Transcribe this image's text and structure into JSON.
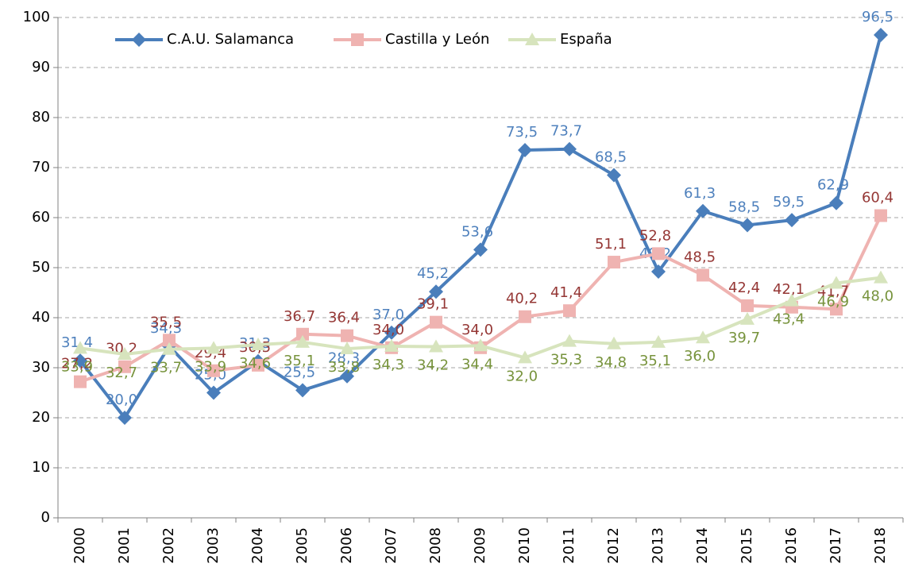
{
  "chart_data": {
    "type": "line",
    "categories": [
      "2000",
      "2001",
      "2002",
      "2003",
      "2004",
      "2005",
      "2006",
      "2007",
      "2008",
      "2009",
      "2010",
      "2011",
      "2012",
      "2013",
      "2014",
      "2015",
      "2016",
      "2017",
      "2018"
    ],
    "series": [
      {
        "name": "C.A.U. Salamanca",
        "color": "#4a7ebb",
        "label_color": "#4f81bd",
        "marker": "diamond",
        "values": [
          31.4,
          20.0,
          34.3,
          25.0,
          31.3,
          25.5,
          28.3,
          37.0,
          45.2,
          53.6,
          73.5,
          73.7,
          68.5,
          49.2,
          61.3,
          58.5,
          59.5,
          62.9,
          96.5
        ],
        "value_labels": [
          "31,4",
          "20,0",
          "34,3",
          "25,0",
          "31,3",
          "25,5",
          "28,3",
          "37,0",
          "45,2",
          "53,6",
          "73,5",
          "73,7",
          "68,5",
          "49,2",
          "61,3",
          "58,5",
          "59,5",
          "62,9",
          "96,5"
        ]
      },
      {
        "name": "Castilla y León",
        "color": "#efb3b1",
        "label_color": "#953735",
        "marker": "square",
        "values": [
          27.2,
          30.2,
          35.5,
          29.4,
          30.5,
          36.7,
          36.4,
          34.0,
          39.1,
          34.0,
          40.2,
          41.4,
          51.1,
          52.8,
          48.5,
          42.4,
          42.1,
          41.7,
          60.4
        ],
        "value_labels": [
          "27,2",
          "30,2",
          "35,5",
          "29,4",
          "30,5",
          "36,7",
          "36,4",
          "34,0",
          "39,1",
          "34,0",
          "40,2",
          "41,4",
          "51,1",
          "52,8",
          "48,5",
          "42,4",
          "42,1",
          "41,7",
          "60,4"
        ]
      },
      {
        "name": "España",
        "color": "#d7e4bd",
        "label_color": "#77933c",
        "marker": "triangle",
        "values": [
          33.9,
          32.7,
          33.7,
          33.9,
          34.6,
          35.1,
          33.8,
          34.3,
          34.2,
          34.4,
          32.0,
          35.3,
          34.8,
          35.1,
          36.0,
          39.7,
          43.4,
          46.9,
          48.0
        ],
        "value_labels": [
          "33,9",
          "32,7",
          "33,7",
          "33,9",
          "34,6",
          "35,1",
          "33,8",
          "34,3",
          "34,2",
          "34,4",
          "32,0",
          "35,3",
          "34,8",
          "35,1",
          "36,0",
          "39,7",
          "43,4",
          "46,9",
          "48,0"
        ]
      }
    ],
    "ylim": [
      0,
      100
    ],
    "yticks": [
      0,
      10,
      20,
      30,
      40,
      50,
      60,
      70,
      80,
      90,
      100
    ],
    "grid": true,
    "legend": "top-left"
  }
}
